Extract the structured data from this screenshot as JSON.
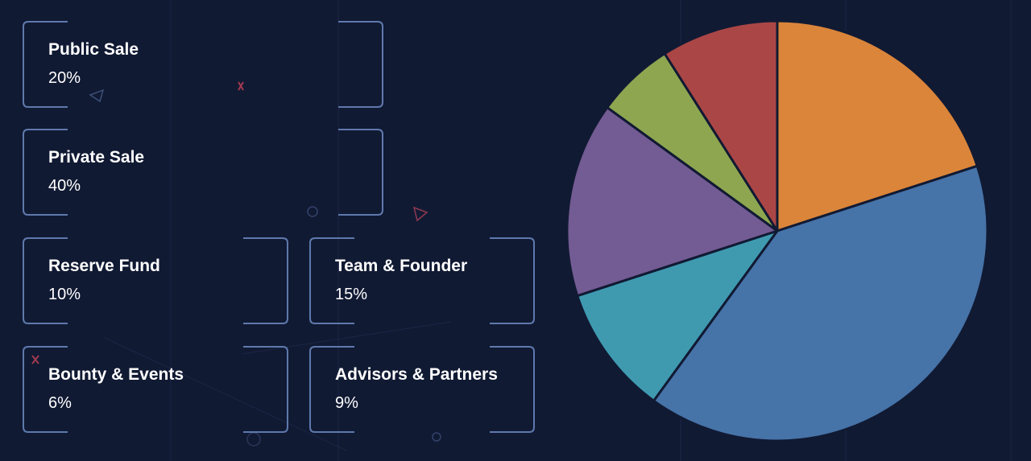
{
  "colors": {
    "background": "#111a33",
    "card_border": "#5e79ad",
    "slice_stroke": "#111a33"
  },
  "chart_data": {
    "type": "pie",
    "slices": [
      {
        "label": "Public Sale",
        "value": 20,
        "display": "20%",
        "color": "#db853a"
      },
      {
        "label": "Private Sale",
        "value": 40,
        "display": "40%",
        "color": "#4673a8"
      },
      {
        "label": "Reserve Fund",
        "value": 10,
        "display": "10%",
        "color": "#3f9ab0"
      },
      {
        "label": "Team & Founder",
        "value": 15,
        "display": "15%",
        "color": "#735b93"
      },
      {
        "label": "Bounty & Events",
        "value": 6,
        "display": "6%",
        "color": "#8ea650"
      },
      {
        "label": "Advisors & Partners",
        "value": 9,
        "display": "9%",
        "color": "#ab4646"
      }
    ]
  }
}
